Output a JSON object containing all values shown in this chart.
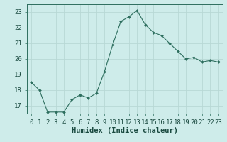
{
  "xlabel": "Humidex (Indice chaleur)",
  "ylabel": "",
  "x_values": [
    0,
    1,
    2,
    3,
    4,
    5,
    6,
    7,
    8,
    9,
    10,
    11,
    12,
    13,
    14,
    15,
    16,
    17,
    18,
    19,
    20,
    21,
    22,
    23
  ],
  "y_values": [
    18.5,
    18.0,
    16.6,
    16.6,
    16.6,
    17.4,
    17.7,
    17.5,
    17.8,
    19.2,
    20.9,
    22.4,
    22.7,
    23.1,
    22.2,
    21.7,
    21.5,
    21.0,
    20.5,
    20.0,
    20.1,
    19.8,
    19.9,
    19.8
  ],
  "ylim": [
    16.5,
    23.5
  ],
  "yticks": [
    17,
    18,
    19,
    20,
    21,
    22,
    23
  ],
  "xlim": [
    -0.5,
    23.5
  ],
  "line_color": "#2d6e5e",
  "marker_color": "#2d6e5e",
  "bg_color": "#ceecea",
  "grid_color": "#b8d8d5",
  "axis_color": "#2d6e5e",
  "label_color": "#1a4a40",
  "tick_label_fontsize": 6.5,
  "xlabel_fontsize": 7.5
}
